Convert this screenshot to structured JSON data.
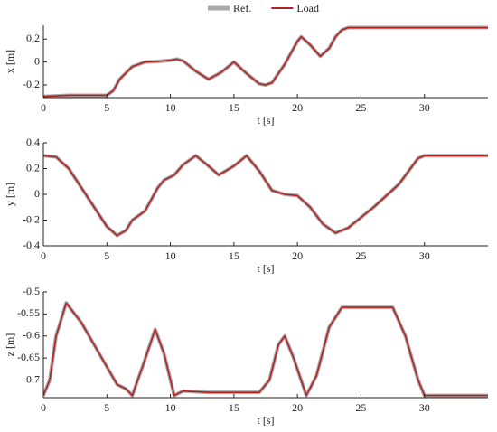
{
  "chart_data": [
    {
      "type": "line",
      "ylabel": "x [m]",
      "xlabel": "t [s]",
      "x": [
        0,
        2,
        4,
        5,
        5.5,
        6,
        7,
        8,
        9,
        10,
        10.5,
        11,
        12,
        13,
        14,
        15,
        16,
        17,
        17.5,
        18,
        19,
        20,
        20.3,
        21,
        21.8,
        22.5,
        23,
        23.5,
        24,
        30,
        35
      ],
      "series": [
        {
          "name": "Ref.",
          "color": "#aaaaaa",
          "values": [
            -0.3,
            -0.29,
            -0.29,
            -0.29,
            -0.25,
            -0.15,
            -0.04,
            0,
            0.005,
            0.015,
            0.025,
            0.01,
            -0.08,
            -0.15,
            -0.09,
            0,
            -0.1,
            -0.19,
            -0.2,
            -0.18,
            -0.02,
            0.18,
            0.22,
            0.15,
            0.05,
            0.12,
            0.22,
            0.28,
            0.3,
            0.3,
            0.3
          ]
        },
        {
          "name": "Load",
          "color": "#b22222",
          "values": [
            -0.3,
            -0.29,
            -0.29,
            -0.29,
            -0.25,
            -0.15,
            -0.04,
            0,
            0.005,
            0.015,
            0.025,
            0.01,
            -0.08,
            -0.15,
            -0.09,
            0,
            -0.1,
            -0.19,
            -0.2,
            -0.18,
            -0.02,
            0.18,
            0.22,
            0.15,
            0.05,
            0.12,
            0.22,
            0.28,
            0.3,
            0.3,
            0.3
          ]
        }
      ],
      "xlim": [
        0,
        35
      ],
      "xticks": [
        0,
        5,
        10,
        15,
        20,
        25,
        30
      ],
      "ylim": [
        -0.31,
        0.32
      ],
      "yticks": [
        -0.2,
        0,
        0.2
      ]
    },
    {
      "type": "line",
      "ylabel": "y [m]",
      "xlabel": "t [s]",
      "x": [
        0,
        1,
        2,
        3,
        4,
        5,
        5.8,
        6.5,
        7,
        8,
        9,
        9.5,
        10.3,
        11,
        12,
        13,
        13.8,
        15,
        16,
        17,
        18,
        19,
        20,
        21,
        22,
        23,
        24,
        26,
        28,
        29.5,
        30,
        35
      ],
      "series": [
        {
          "color": "#aaaaaa",
          "values": [
            0.3,
            0.29,
            0.2,
            0.05,
            -0.1,
            -0.25,
            -0.32,
            -0.28,
            -0.2,
            -0.13,
            0.05,
            0.11,
            0.15,
            0.23,
            0.3,
            0.22,
            0.15,
            0.22,
            0.3,
            0.18,
            0.03,
            0,
            -0.01,
            -0.1,
            -0.23,
            -0.3,
            -0.26,
            -0.1,
            0.08,
            0.28,
            0.3,
            0.3
          ]
        },
        {
          "color": "#b22222",
          "values": [
            0.3,
            0.29,
            0.2,
            0.05,
            -0.1,
            -0.25,
            -0.32,
            -0.28,
            -0.2,
            -0.13,
            0.05,
            0.11,
            0.15,
            0.23,
            0.3,
            0.22,
            0.15,
            0.22,
            0.3,
            0.18,
            0.03,
            0,
            -0.01,
            -0.1,
            -0.23,
            -0.3,
            -0.26,
            -0.1,
            0.08,
            0.28,
            0.3,
            0.3
          ]
        }
      ],
      "xlim": [
        0,
        35
      ],
      "xticks": [
        0,
        5,
        10,
        15,
        20,
        25,
        30
      ],
      "ylim": [
        -0.4,
        0.4
      ],
      "yticks": [
        -0.4,
        -0.2,
        0,
        0.2,
        0.4
      ]
    },
    {
      "type": "line",
      "ylabel": "z [m]",
      "xlabel": "t [s]",
      "x": [
        0,
        0.5,
        1,
        1.8,
        3,
        4,
        5,
        5.8,
        6.5,
        7,
        7.8,
        8.8,
        9.5,
        10.3,
        11,
        13,
        15,
        17,
        17.8,
        18.5,
        19,
        19.7,
        20.7,
        21.5,
        22.5,
        23.5,
        27.5,
        28.5,
        29.5,
        30,
        35
      ],
      "series": [
        {
          "color": "#aaaaaa",
          "values": [
            -0.735,
            -0.7,
            -0.6,
            -0.525,
            -0.57,
            -0.62,
            -0.67,
            -0.71,
            -0.72,
            -0.735,
            -0.67,
            -0.585,
            -0.64,
            -0.735,
            -0.725,
            -0.728,
            -0.728,
            -0.728,
            -0.7,
            -0.62,
            -0.6,
            -0.65,
            -0.735,
            -0.69,
            -0.58,
            -0.535,
            -0.535,
            -0.6,
            -0.7,
            -0.735,
            -0.735
          ]
        },
        {
          "color": "#b22222",
          "values": [
            -0.735,
            -0.7,
            -0.6,
            -0.525,
            -0.57,
            -0.62,
            -0.67,
            -0.71,
            -0.72,
            -0.735,
            -0.67,
            -0.585,
            -0.64,
            -0.735,
            -0.725,
            -0.728,
            -0.728,
            -0.728,
            -0.7,
            -0.62,
            -0.6,
            -0.65,
            -0.735,
            -0.69,
            -0.58,
            -0.535,
            -0.535,
            -0.6,
            -0.7,
            -0.735,
            -0.735
          ]
        }
      ],
      "xlim": [
        0,
        35
      ],
      "xticks": [
        0,
        5,
        10,
        15,
        20,
        25,
        30
      ],
      "ylim": [
        -0.74,
        -0.5
      ],
      "yticks": [
        -0.7,
        -0.65,
        -0.6,
        -0.55,
        -0.5
      ]
    }
  ]
}
